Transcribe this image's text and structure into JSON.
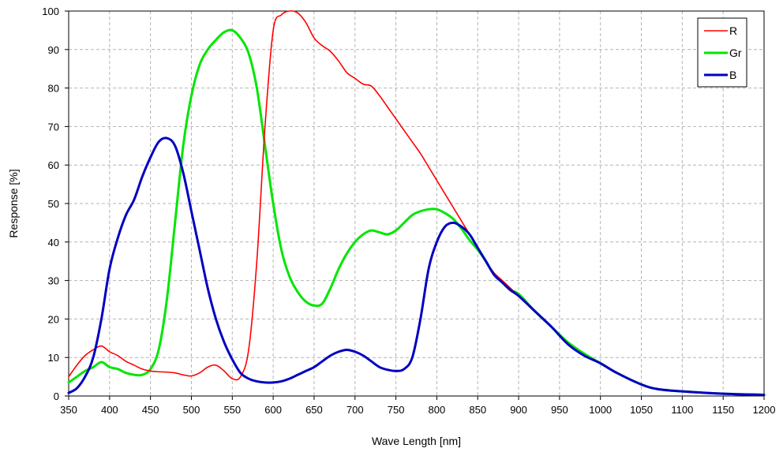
{
  "chart_data": {
    "type": "line",
    "title": "",
    "xlabel": "Wave Length [nm]",
    "ylabel": "Response  [%]",
    "xlim": [
      350,
      1200
    ],
    "ylim": [
      0,
      100
    ],
    "xticks": [
      350,
      400,
      450,
      500,
      550,
      600,
      650,
      700,
      750,
      800,
      850,
      900,
      950,
      1000,
      1050,
      1100,
      1150,
      1200
    ],
    "yticks": [
      0,
      10,
      20,
      30,
      40,
      50,
      60,
      70,
      80,
      90,
      100
    ],
    "grid": true,
    "legend_position": "top-right",
    "series": [
      {
        "name": "R",
        "color": "#ff0000",
        "points": [
          [
            350,
            5
          ],
          [
            360,
            8
          ],
          [
            370,
            10.5
          ],
          [
            380,
            12
          ],
          [
            390,
            13
          ],
          [
            400,
            11.5
          ],
          [
            410,
            10.5
          ],
          [
            420,
            9
          ],
          [
            430,
            8
          ],
          [
            440,
            7
          ],
          [
            450,
            6.5
          ],
          [
            460,
            6.3
          ],
          [
            470,
            6.2
          ],
          [
            480,
            6
          ],
          [
            490,
            5.5
          ],
          [
            500,
            5.2
          ],
          [
            510,
            6
          ],
          [
            520,
            7.5
          ],
          [
            530,
            8
          ],
          [
            540,
            6.5
          ],
          [
            550,
            4.5
          ],
          [
            560,
            5
          ],
          [
            570,
            12
          ],
          [
            580,
            35
          ],
          [
            590,
            70
          ],
          [
            600,
            95
          ],
          [
            610,
            99
          ],
          [
            620,
            100
          ],
          [
            630,
            99.5
          ],
          [
            640,
            97
          ],
          [
            650,
            93
          ],
          [
            660,
            91
          ],
          [
            670,
            89.5
          ],
          [
            680,
            87
          ],
          [
            690,
            84
          ],
          [
            700,
            82.5
          ],
          [
            710,
            81
          ],
          [
            720,
            80.5
          ],
          [
            730,
            78
          ],
          [
            740,
            75
          ],
          [
            750,
            72
          ],
          [
            760,
            69
          ],
          [
            770,
            66
          ],
          [
            780,
            63
          ],
          [
            790,
            59.5
          ],
          [
            800,
            56
          ],
          [
            810,
            52.5
          ],
          [
            820,
            49
          ],
          [
            830,
            45.5
          ],
          [
            840,
            42
          ],
          [
            850,
            38.5
          ],
          [
            860,
            35
          ],
          [
            870,
            32
          ],
          [
            880,
            30
          ],
          [
            890,
            28
          ],
          [
            900,
            26
          ],
          [
            920,
            22
          ],
          [
            940,
            18
          ],
          [
            960,
            13.5
          ],
          [
            980,
            10.5
          ],
          [
            1000,
            8.5
          ],
          [
            1020,
            6
          ],
          [
            1050,
            3
          ],
          [
            1070,
            1.8
          ],
          [
            1100,
            1.2
          ],
          [
            1150,
            0.6
          ],
          [
            1200,
            0.3
          ]
        ]
      },
      {
        "name": "Gr",
        "color": "#00e600",
        "points": [
          [
            350,
            3.5
          ],
          [
            360,
            5
          ],
          [
            370,
            6.5
          ],
          [
            380,
            7.5
          ],
          [
            390,
            8.8
          ],
          [
            400,
            7.5
          ],
          [
            410,
            7
          ],
          [
            420,
            6
          ],
          [
            430,
            5.5
          ],
          [
            440,
            5.5
          ],
          [
            450,
            7
          ],
          [
            460,
            12
          ],
          [
            470,
            25
          ],
          [
            480,
            45
          ],
          [
            490,
            65
          ],
          [
            500,
            78
          ],
          [
            510,
            86
          ],
          [
            520,
            90
          ],
          [
            530,
            92.5
          ],
          [
            540,
            94.5
          ],
          [
            550,
            95
          ],
          [
            560,
            93
          ],
          [
            570,
            89
          ],
          [
            580,
            80
          ],
          [
            590,
            65
          ],
          [
            600,
            50
          ],
          [
            610,
            38
          ],
          [
            620,
            31
          ],
          [
            630,
            27
          ],
          [
            640,
            24.5
          ],
          [
            650,
            23.5
          ],
          [
            660,
            24
          ],
          [
            670,
            28
          ],
          [
            680,
            33
          ],
          [
            690,
            37
          ],
          [
            700,
            40
          ],
          [
            710,
            42
          ],
          [
            720,
            43
          ],
          [
            730,
            42.5
          ],
          [
            740,
            42
          ],
          [
            750,
            43
          ],
          [
            760,
            45
          ],
          [
            770,
            47
          ],
          [
            780,
            48
          ],
          [
            790,
            48.5
          ],
          [
            800,
            48.5
          ],
          [
            810,
            47.5
          ],
          [
            820,
            46
          ],
          [
            830,
            43.5
          ],
          [
            840,
            40.5
          ],
          [
            850,
            38
          ],
          [
            860,
            35
          ],
          [
            870,
            31.5
          ],
          [
            880,
            29.5
          ],
          [
            890,
            27.5
          ],
          [
            900,
            26.5
          ],
          [
            920,
            22
          ],
          [
            940,
            18
          ],
          [
            960,
            14
          ],
          [
            980,
            11
          ],
          [
            1000,
            8.5
          ],
          [
            1020,
            6
          ],
          [
            1050,
            3
          ],
          [
            1070,
            1.8
          ],
          [
            1100,
            1.2
          ],
          [
            1150,
            0.6
          ],
          [
            1200,
            0.3
          ]
        ]
      },
      {
        "name": "B",
        "color": "#0000c0",
        "points": [
          [
            350,
            0.8
          ],
          [
            360,
            2
          ],
          [
            370,
            5
          ],
          [
            380,
            10
          ],
          [
            390,
            20
          ],
          [
            400,
            33
          ],
          [
            410,
            41
          ],
          [
            420,
            47
          ],
          [
            430,
            51
          ],
          [
            440,
            57
          ],
          [
            450,
            62
          ],
          [
            460,
            66
          ],
          [
            470,
            67
          ],
          [
            480,
            65
          ],
          [
            490,
            58
          ],
          [
            500,
            48
          ],
          [
            510,
            38
          ],
          [
            520,
            28
          ],
          [
            530,
            20
          ],
          [
            540,
            14
          ],
          [
            550,
            9.5
          ],
          [
            560,
            6
          ],
          [
            570,
            4.5
          ],
          [
            580,
            3.8
          ],
          [
            590,
            3.5
          ],
          [
            600,
            3.5
          ],
          [
            610,
            3.8
          ],
          [
            620,
            4.5
          ],
          [
            630,
            5.5
          ],
          [
            640,
            6.5
          ],
          [
            650,
            7.5
          ],
          [
            660,
            9
          ],
          [
            670,
            10.5
          ],
          [
            680,
            11.5
          ],
          [
            690,
            12
          ],
          [
            700,
            11.5
          ],
          [
            710,
            10.5
          ],
          [
            720,
            9
          ],
          [
            730,
            7.5
          ],
          [
            740,
            6.8
          ],
          [
            750,
            6.5
          ],
          [
            760,
            7
          ],
          [
            770,
            10
          ],
          [
            780,
            20
          ],
          [
            790,
            33
          ],
          [
            800,
            40
          ],
          [
            810,
            44
          ],
          [
            820,
            45
          ],
          [
            830,
            44
          ],
          [
            840,
            42
          ],
          [
            850,
            38.5
          ],
          [
            860,
            35
          ],
          [
            870,
            31.5
          ],
          [
            880,
            29.5
          ],
          [
            890,
            27.5
          ],
          [
            900,
            26
          ],
          [
            920,
            22
          ],
          [
            940,
            18
          ],
          [
            960,
            13.5
          ],
          [
            980,
            10.5
          ],
          [
            1000,
            8.5
          ],
          [
            1020,
            6
          ],
          [
            1050,
            3
          ],
          [
            1070,
            1.8
          ],
          [
            1100,
            1.2
          ],
          [
            1150,
            0.6
          ],
          [
            1200,
            0.3
          ]
        ]
      }
    ]
  }
}
